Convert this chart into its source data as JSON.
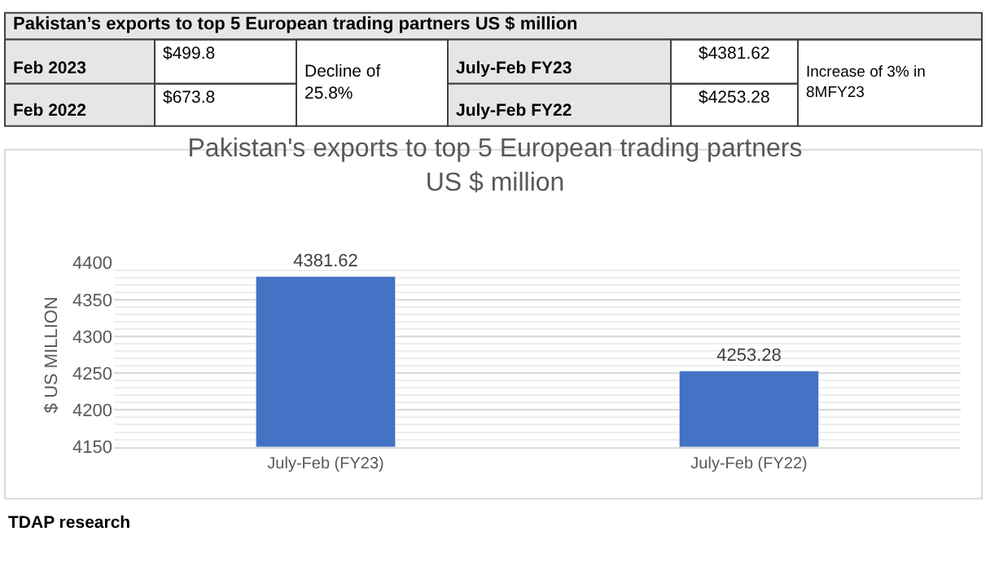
{
  "chart_data": {
    "type": "bar",
    "title": "Pakistan's exports to top 5 European trading partners\nUS $ million",
    "ylabel": "$ US MILLION",
    "categories": [
      "July-Feb (FY23)",
      "July-Feb (FY22)"
    ],
    "values": [
      4381.62,
      4253.28
    ],
    "color": "#4472c4",
    "data_labels": true,
    "ylim": [
      4150,
      4400
    ],
    "yticks": [
      4150,
      4200,
      4250,
      4300,
      4350,
      4400
    ],
    "grid": "y",
    "annotations": [
      "Pakistan’s exports to top 5 European trading partners US $ million",
      "Feb 2023",
      "$499.8",
      "Decline of 25.8%",
      "July-Feb FY23",
      "$4381.62",
      "Increase of 3% in 8MFY23",
      "Feb 2022",
      "$673.8",
      "July-Feb FY22",
      "$4253.28",
      "TDAP research"
    ]
  }
}
